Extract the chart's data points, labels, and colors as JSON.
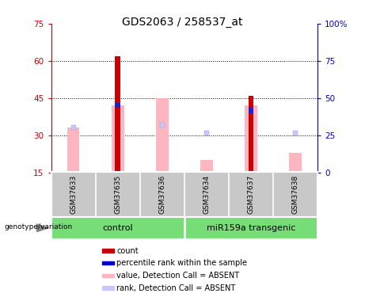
{
  "title": "GDS2063 / 258537_at",
  "samples": [
    "GSM37633",
    "GSM37635",
    "GSM37636",
    "GSM37634",
    "GSM37637",
    "GSM37638"
  ],
  "ylim_left": [
    15,
    75
  ],
  "ylim_right": [
    0,
    100
  ],
  "yticks_left": [
    15,
    30,
    45,
    60,
    75
  ],
  "yticks_right": [
    0,
    25,
    50,
    75,
    100
  ],
  "red_bar_top": [
    0,
    62,
    0,
    0,
    46,
    0
  ],
  "blue_bar_top": [
    0,
    43,
    0,
    0,
    41,
    0
  ],
  "pink_bar_top": [
    33,
    42,
    45,
    20,
    42,
    23
  ],
  "rank_dot_y": [
    33,
    0,
    34,
    31,
    0,
    31
  ],
  "rank_dot_show": [
    true,
    false,
    true,
    true,
    false,
    true
  ],
  "background_color": "#ffffff",
  "left_tick_color": "#cc0000",
  "right_tick_color": "#0000cc",
  "title_fontsize": 10,
  "legend_items": [
    {
      "label": "count",
      "color": "#cc0000"
    },
    {
      "label": "percentile rank within the sample",
      "color": "#0000cc"
    },
    {
      "label": "value, Detection Call = ABSENT",
      "color": "#ffb6c1"
    },
    {
      "label": "rank, Detection Call = ABSENT",
      "color": "#c8c8ff"
    }
  ],
  "bar_bottom": 15,
  "pink_bar_width": 0.28,
  "red_bar_width": 0.12,
  "blue_bar_width": 0.12
}
